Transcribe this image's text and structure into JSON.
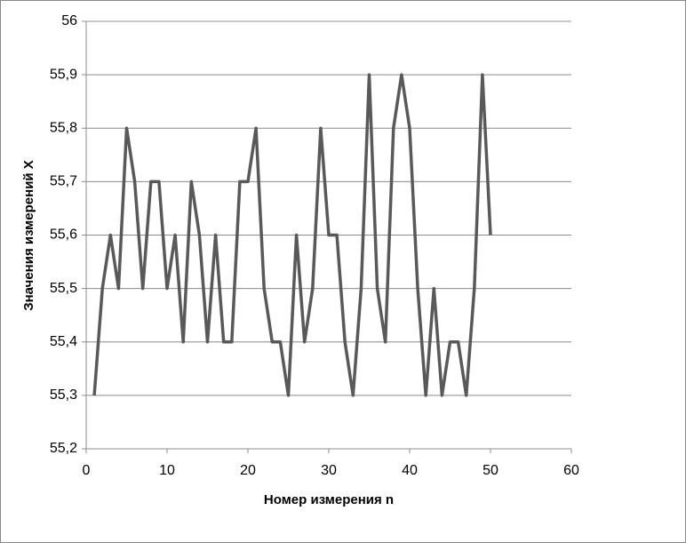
{
  "chart_data": {
    "type": "line",
    "x_label": "Номер измерения n",
    "y_label": "Значения измерений  X",
    "x": [
      1,
      2,
      3,
      4,
      5,
      6,
      7,
      8,
      9,
      10,
      11,
      12,
      13,
      14,
      15,
      16,
      17,
      18,
      19,
      20,
      21,
      22,
      23,
      24,
      25,
      26,
      27,
      28,
      29,
      30,
      31,
      32,
      33,
      34,
      35,
      36,
      37,
      38,
      39,
      40,
      41,
      42,
      43,
      44,
      45,
      46,
      47,
      48,
      49,
      50
    ],
    "series": [
      {
        "color": "#595959",
        "values": [
          55.3,
          55.5,
          55.6,
          55.5,
          55.8,
          55.7,
          55.5,
          55.7,
          55.7,
          55.5,
          55.6,
          55.4,
          55.7,
          55.6,
          55.4,
          55.6,
          55.4,
          55.4,
          55.7,
          55.7,
          55.8,
          55.5,
          55.4,
          55.4,
          55.3,
          55.6,
          55.4,
          55.5,
          55.8,
          55.6,
          55.6,
          55.4,
          55.3,
          55.5,
          55.9,
          55.5,
          55.4,
          55.8,
          55.9,
          55.8,
          55.5,
          55.3,
          55.5,
          55.3,
          55.4,
          55.4,
          55.3,
          55.5,
          55.9,
          55.6
        ]
      }
    ],
    "xlim": [
      0,
      60
    ],
    "xticks": [
      0,
      10,
      20,
      30,
      40,
      50,
      60
    ],
    "ylim": [
      55.2,
      56
    ],
    "yticks": [
      {
        "value": 55.2,
        "label": "55,2"
      },
      {
        "value": 55.3,
        "label": "55,3"
      },
      {
        "value": 55.4,
        "label": "55,4"
      },
      {
        "value": 55.5,
        "label": "55,5"
      },
      {
        "value": 55.6,
        "label": "55,6"
      },
      {
        "value": 55.7,
        "label": "55,7"
      },
      {
        "value": 55.8,
        "label": "55,8"
      },
      {
        "value": 55.9,
        "label": "55,9"
      },
      {
        "value": 56,
        "label": "56"
      }
    ],
    "grid": true
  }
}
